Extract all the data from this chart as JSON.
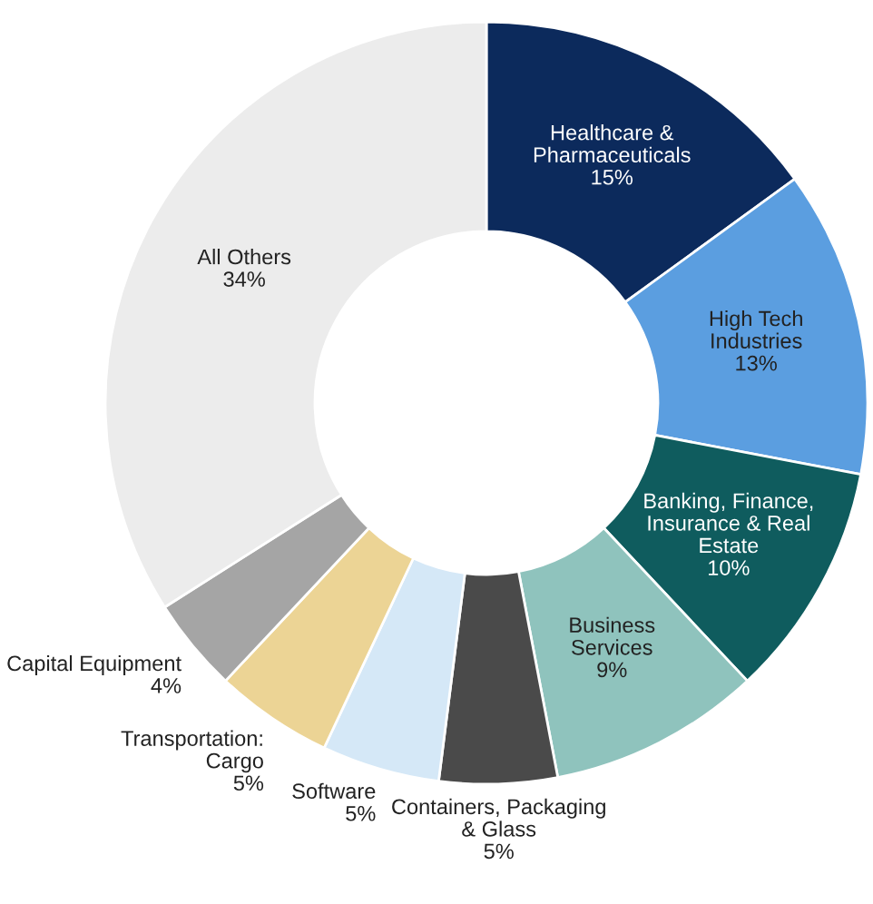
{
  "chart_data": {
    "type": "donut",
    "categories": [
      "Healthcare &\nPharmaceuticals",
      "High Tech\nIndustries",
      "Banking, Finance,\nInsurance & Real\nEstate",
      "Business\nServices",
      "Containers, Packaging\n& Glass",
      "Software",
      "Transportation:\nCargo",
      "Capital Equipment",
      "All Others"
    ],
    "values": [
      15,
      13,
      10,
      9,
      5,
      5,
      5,
      4,
      34
    ],
    "value_labels": [
      "15%",
      "13%",
      "10%",
      "9%",
      "5%",
      "5%",
      "5%",
      "4%",
      "34%"
    ],
    "colors": [
      "#0c2a5c",
      "#5b9ee0",
      "#0f5c5e",
      "#8fc3bd",
      "#4a4a4a",
      "#d5e8f7",
      "#ecd495",
      "#a5a5a5",
      "#ececec"
    ]
  }
}
